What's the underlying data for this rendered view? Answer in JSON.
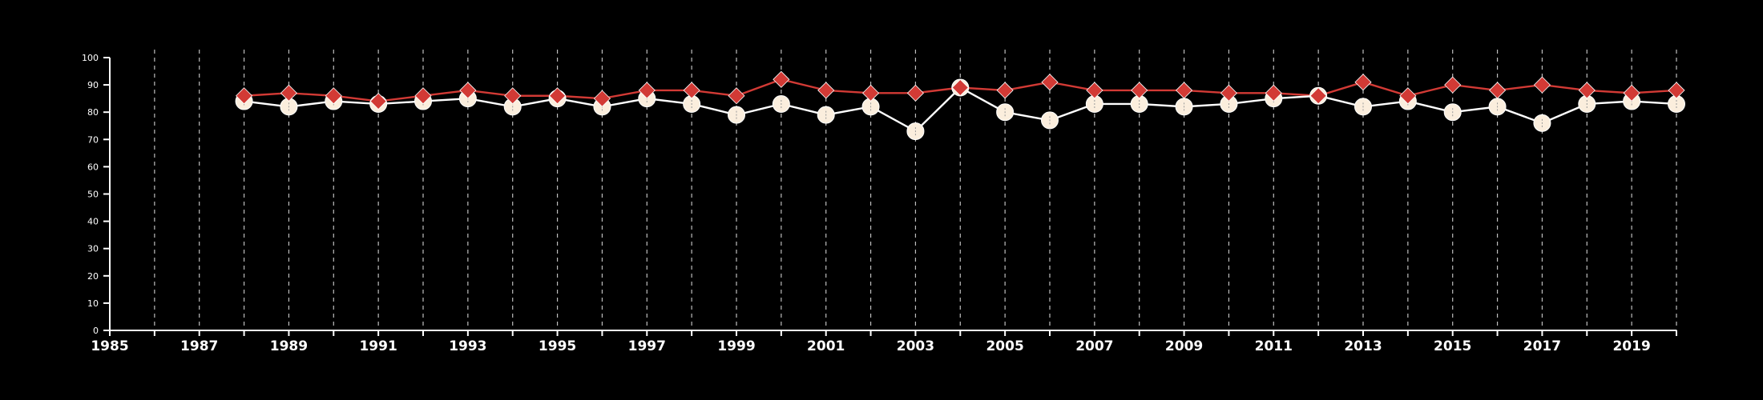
{
  "colors": {
    "background": "#000000",
    "axis": "#ffffff",
    "grid": "#bdbdbd",
    "series_red": "#d23a35",
    "series_cream": "#fbeedd",
    "cream_line": "#ffffff"
  },
  "chart_data": {
    "type": "line",
    "title": "",
    "xlabel": "",
    "ylabel": "",
    "xlim": [
      1985,
      2020
    ],
    "ylim": [
      0,
      100
    ],
    "grid": "vertical dashed lines at each year",
    "legend": "none",
    "yticks": [
      0,
      10,
      20,
      30,
      40,
      50,
      60,
      70,
      80,
      90,
      100
    ],
    "xticks_labeled": [
      1985,
      1987,
      1989,
      1991,
      1993,
      1995,
      1997,
      1999,
      2001,
      2003,
      2005,
      2007,
      2009,
      2011,
      2013,
      2015,
      2017,
      2019
    ],
    "x": [
      1988,
      1989,
      1990,
      1991,
      1992,
      1993,
      1994,
      1995,
      1996,
      1997,
      1998,
      1999,
      2000,
      2001,
      2002,
      2003,
      2004,
      2005,
      2006,
      2007,
      2008,
      2009,
      2010,
      2011,
      2012,
      2013,
      2014,
      2015,
      2016,
      2017,
      2018,
      2019,
      2020
    ],
    "series": [
      {
        "marker": "diamond",
        "color": "#d23a35",
        "values": [
          86,
          87,
          86,
          84,
          86,
          88,
          86,
          86,
          85,
          88,
          88,
          86,
          92,
          88,
          87,
          87,
          89,
          88,
          91,
          88,
          88,
          88,
          87,
          87,
          86,
          91,
          86,
          90,
          88,
          90,
          88,
          87,
          88
        ]
      },
      {
        "marker": "circle",
        "color": "#fbeedd",
        "values": [
          84,
          82,
          84,
          83,
          84,
          85,
          82,
          85,
          82,
          85,
          83,
          79,
          83,
          79,
          82,
          73,
          89,
          80,
          77,
          83,
          83,
          82,
          83,
          85,
          86,
          82,
          84,
          80,
          82,
          76,
          83,
          84,
          83
        ]
      }
    ]
  }
}
